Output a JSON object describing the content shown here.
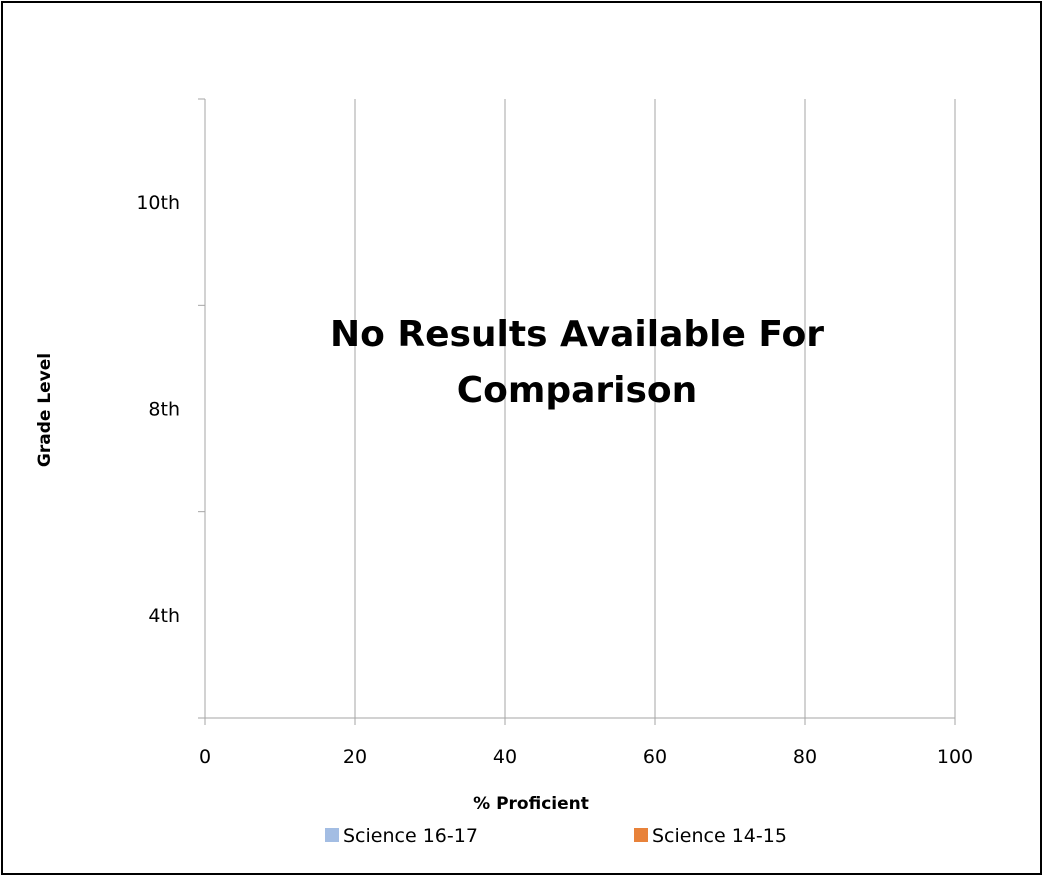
{
  "chart_data": {
    "type": "bar",
    "orientation": "horizontal",
    "categories": [
      "4th",
      "8th",
      "10th"
    ],
    "series": [
      {
        "name": "Science 16-17",
        "values": [
          null,
          null,
          null
        ],
        "color": "#a3bde3"
      },
      {
        "name": "Science 14-15",
        "values": [
          null,
          null,
          null
        ],
        "color": "#e8823a"
      }
    ],
    "xlabel": "% Proficient",
    "ylabel": "Grade Level",
    "xlim": [
      0,
      100
    ],
    "xticks": [
      0,
      20,
      40,
      60,
      80,
      100
    ],
    "grid": "vertical",
    "legend_position": "bottom",
    "annotation": {
      "line1": "No Results Available For",
      "line2": "Comparison"
    }
  },
  "colors": {
    "gridline": "#a6a6a6",
    "axis": "#a6a6a6",
    "text": "#000000"
  }
}
